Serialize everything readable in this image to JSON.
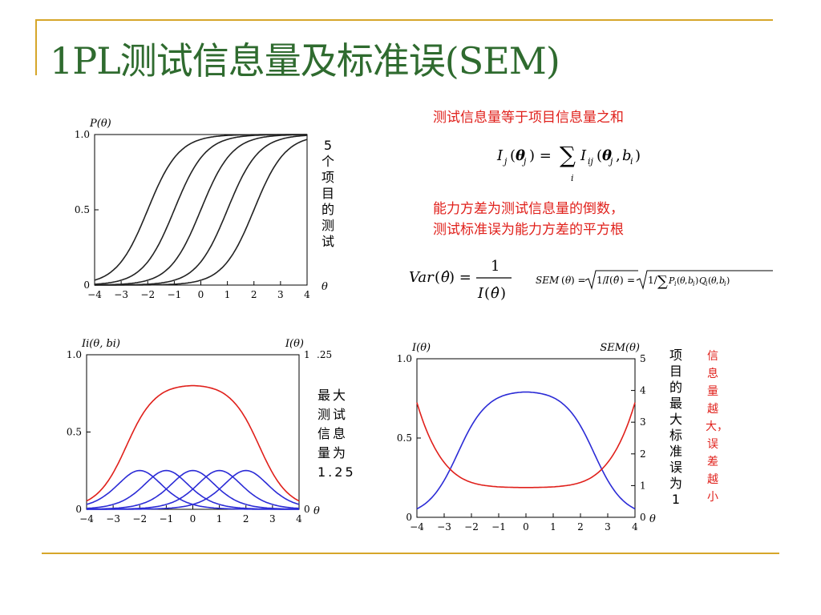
{
  "title": "1PL测试信息量及标准误(SEM)",
  "colors": {
    "title": "#2f6b2f",
    "accent_line": "#d6a62a",
    "red": "#e0201b",
    "blue": "#2b2bd6",
    "black": "#222222"
  },
  "notes": {
    "sum_note": "测试信息量等于项目信息量之和",
    "var_note_1": "能力方差为测试信息量的倒数，",
    "var_note_2": "测试标准误为能力方差的平方根"
  },
  "labels": {
    "five_items": "5个项目的测试",
    "max_info": "最大测试信息量为1.25",
    "min_sem": "项目的最大标准误为1",
    "more_info_less_error": "信息量越大，误差越小",
    "axis_25": ".25"
  },
  "formulas": {
    "sum": "I_j(θ_j) = Σ_i I_ij(θ_j, b_i)",
    "var": "Var(θ̂) = 1 / I(θ̂)",
    "sem": "SEM(θ) = √(1/I(θ̂)) = √(1/ΣP_i(θ,b_i)Q_i(θ,b_i))"
  },
  "chart_data": [
    {
      "type": "line",
      "title": "",
      "ylabel": "P(θ)",
      "xlabel": "θ",
      "xlim": [
        -4,
        4
      ],
      "ylim": [
        0,
        1
      ],
      "xticks": [
        "−4",
        "−3",
        "−2",
        "−1",
        "0",
        "1",
        "2",
        "3",
        "4"
      ],
      "yticks": [
        "0",
        "0.5",
        "1.0"
      ],
      "series": [
        {
          "b": -2,
          "color": "#222222"
        },
        {
          "b": -1,
          "color": "#222222"
        },
        {
          "b": 0,
          "color": "#222222"
        },
        {
          "b": 1,
          "color": "#222222"
        },
        {
          "b": 2,
          "color": "#222222"
        }
      ]
    },
    {
      "type": "line",
      "ylabel": "Ii(θ, bi)",
      "ylabel_right": "I(θ)",
      "xlabel": "θ",
      "xlim": [
        -4,
        4
      ],
      "ylim": [
        0,
        1
      ],
      "xticks": [
        "−4",
        "−3",
        "−2",
        "−1",
        "0",
        "1",
        "2",
        "3",
        "4"
      ],
      "yticks": [
        "0",
        "0.5",
        "1.0"
      ],
      "yticks_right": [
        "0",
        "1"
      ],
      "test_info_peak": 1.25,
      "series": [
        {
          "b": -2,
          "color": "#2b2bd6"
        },
        {
          "b": -1,
          "color": "#2b2bd6"
        },
        {
          "b": 0,
          "color": "#2b2bd6"
        },
        {
          "b": 1,
          "color": "#2b2bd6"
        },
        {
          "b": 2,
          "color": "#2b2bd6"
        }
      ]
    },
    {
      "type": "line",
      "ylabel": "I(θ)",
      "ylabel_right": "SEM(θ)",
      "xlabel": "θ",
      "xlim": [
        -4,
        4
      ],
      "ylim": [
        0,
        1
      ],
      "ylim_right": [
        0,
        5
      ],
      "xticks": [
        "−4",
        "−3",
        "−2",
        "−1",
        "0",
        "1",
        "2",
        "3",
        "4"
      ],
      "yticks": [
        "0",
        "0.5",
        "1.0"
      ],
      "yticks_right": [
        "0",
        "1",
        "2",
        "3",
        "4",
        "5"
      ],
      "series": [
        {
          "name": "I(θ)",
          "color": "#2b2bd6"
        },
        {
          "name": "SEM(θ)",
          "color": "#e0201b"
        }
      ]
    }
  ]
}
